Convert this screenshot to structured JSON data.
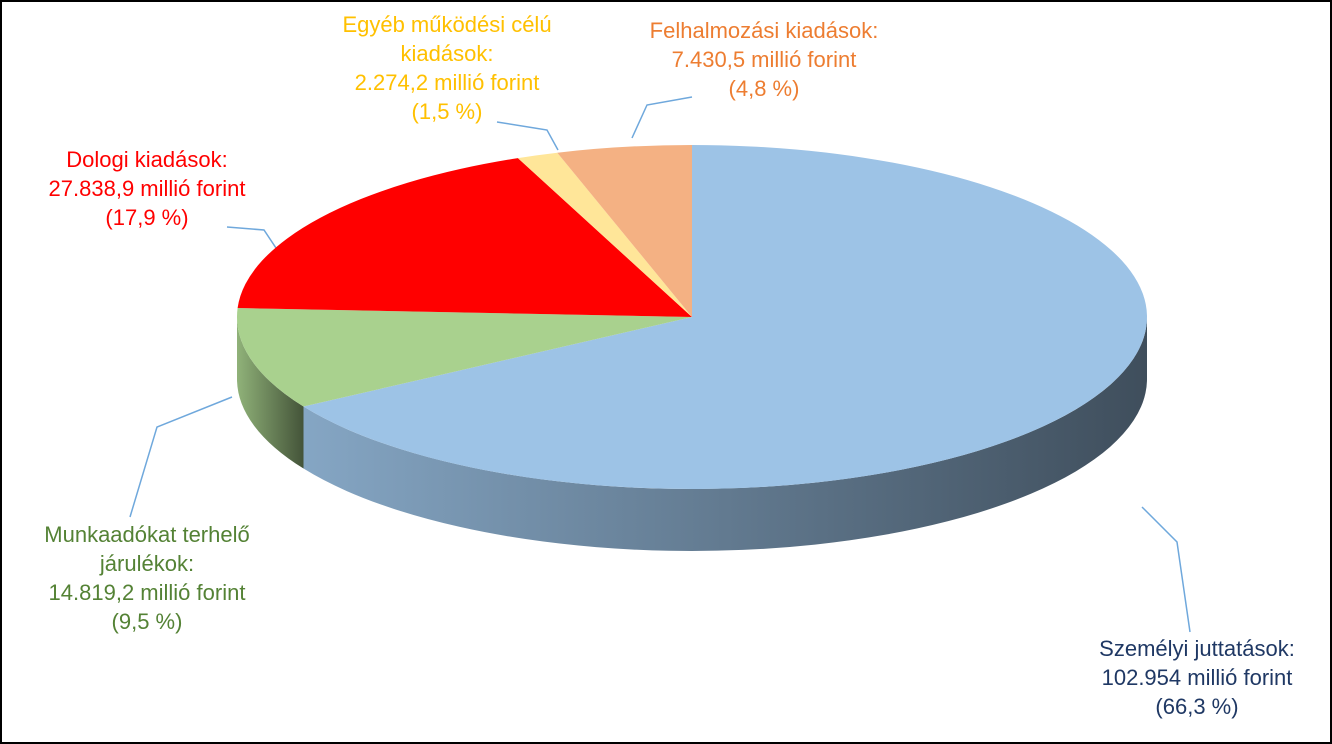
{
  "chart_data": {
    "type": "pie3d",
    "categories": [
      "Személyi juttatások:",
      "Munkaadókat terhelő járulékok:",
      "Dologi kiadások:",
      "Egyéb működési célú kiadások:",
      "Felhalmozási kiadások:"
    ],
    "values": [
      102954,
      14819.2,
      27838.9,
      2274.2,
      7430.5
    ],
    "value_labels": [
      "102.954 millió forint",
      "14.819,2 millió forint",
      "27.838,9 millió forint",
      "2.274,2 millió forint",
      "7.430,5 millió forint"
    ],
    "percents": [
      66.3,
      9.5,
      17.9,
      1.5,
      4.8
    ],
    "percent_labels": [
      "(66,3 %)",
      "(9,5 %)",
      "(17,9 %)",
      "(1,5 %)",
      "(4,8 %)"
    ],
    "colors": [
      "#9dc3e6",
      "#a9d18e",
      "#ff0000",
      "#ffe699",
      "#f4b183"
    ],
    "label_colors": [
      "#1f3864",
      "#548235",
      "#ff0000",
      "#ffc000",
      "#ed7d31"
    ]
  }
}
